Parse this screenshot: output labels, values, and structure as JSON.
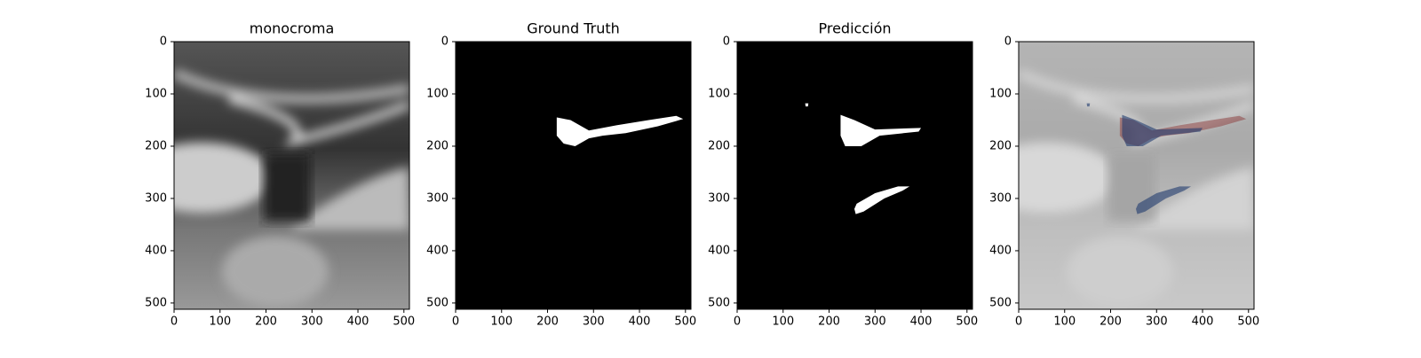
{
  "chart_data": [
    {
      "type": "image",
      "title": "monocroma",
      "xlim": [
        0,
        512
      ],
      "ylim": [
        512,
        0
      ],
      "xticks": [
        0,
        100,
        200,
        300,
        400,
        500
      ],
      "yticks": [
        0,
        100,
        200,
        300,
        400,
        500
      ]
    },
    {
      "type": "image",
      "title": "Ground Truth",
      "xlim": [
        0,
        512
      ],
      "ylim": [
        512,
        0
      ],
      "xticks": [
        0,
        100,
        200,
        300,
        400,
        500
      ],
      "yticks": [
        0,
        100,
        200,
        300,
        400,
        500
      ]
    },
    {
      "type": "image",
      "title": "Predicción",
      "xlim": [
        0,
        512
      ],
      "ylim": [
        512,
        0
      ],
      "xticks": [
        0,
        100,
        200,
        300,
        400,
        500
      ],
      "yticks": [
        0,
        100,
        200,
        300,
        400,
        500
      ]
    },
    {
      "type": "image",
      "xlim": [
        0,
        512
      ],
      "ylim": [
        512,
        0
      ],
      "xticks": [
        0,
        100,
        200,
        300,
        400,
        500
      ],
      "yticks": [
        0,
        100,
        200,
        300,
        400,
        500
      ]
    }
  ]
}
